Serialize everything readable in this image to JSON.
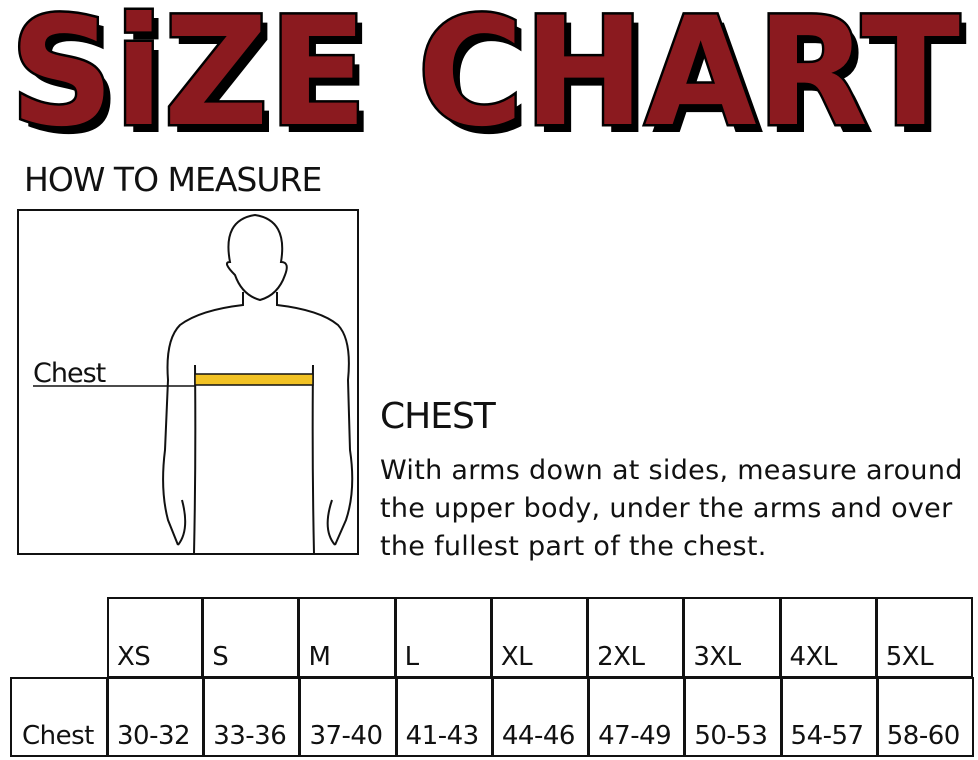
{
  "header": {
    "title": "SiZE CHART",
    "subtitle": "HOW TO MEASURE"
  },
  "figure": {
    "label": "Chest"
  },
  "section": {
    "heading": "CHEST",
    "description": "With arms down at sides, measure around the upper body, under the arms and over the fullest part of the chest."
  },
  "table": {
    "columns": [
      "XS",
      "S",
      "M",
      "L",
      "XL",
      "2XL",
      "3XL",
      "4XL",
      "5XL"
    ],
    "rows": [
      {
        "label": "Chest",
        "values": [
          "30-32",
          "33-36",
          "37-40",
          "41-43",
          "44-46",
          "47-49",
          "50-53",
          "54-57",
          "58-60"
        ]
      }
    ]
  }
}
